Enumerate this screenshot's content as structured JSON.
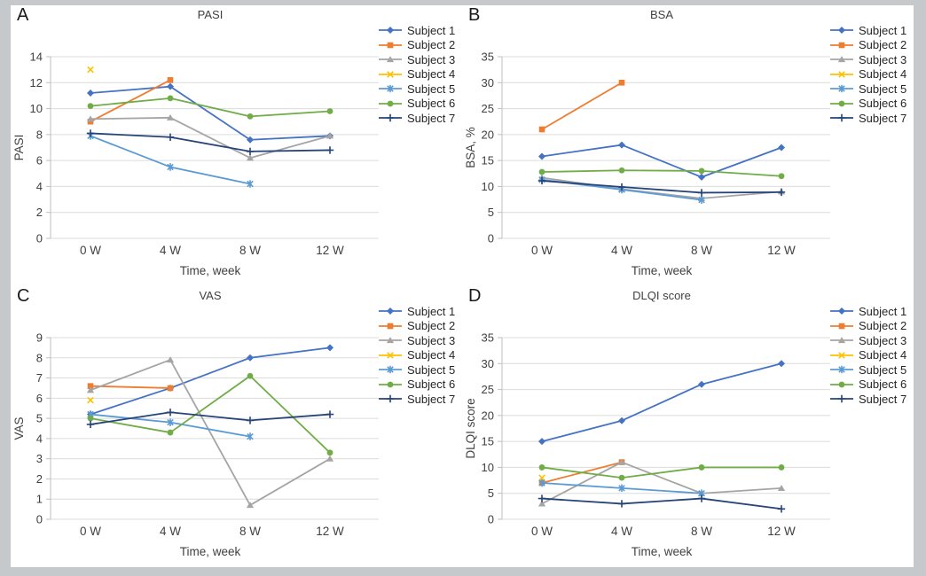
{
  "frame": {
    "border_color": "#c6c9cc",
    "canvas_color": "#ffffff"
  },
  "figure": {
    "panel_letters": [
      "A",
      "B",
      "C",
      "D"
    ],
    "xlabel": "Time, week",
    "categories": [
      "0 W",
      "4 W",
      "8 W",
      "12 W"
    ]
  },
  "subjects": [
    {
      "name": "Subject 1",
      "color": "#4472C4",
      "marker": "diamond"
    },
    {
      "name": "Subject 2",
      "color": "#ED7D31",
      "marker": "square"
    },
    {
      "name": "Subject 3",
      "color": "#A5A5A5",
      "marker": "triangle"
    },
    {
      "name": "Subject 4",
      "color": "#FFC000",
      "marker": "x"
    },
    {
      "name": "Subject 5",
      "color": "#5B9BD5",
      "marker": "asterisk"
    },
    {
      "name": "Subject 6",
      "color": "#70AD47",
      "marker": "circle"
    },
    {
      "name": "Subject 7",
      "color": "#264478",
      "marker": "plus"
    }
  ],
  "chart_data": [
    {
      "type": "line",
      "panel_label": "A",
      "title": "PASI",
      "ylabel": "PASI",
      "xlabel": "Time, week",
      "categories": [
        "0 W",
        "4 W",
        "8 W",
        "12 W"
      ],
      "ylim": [
        0,
        14
      ],
      "yticks": [
        0,
        2,
        4,
        6,
        8,
        10,
        12,
        14
      ],
      "grid": true,
      "legend_position": "right",
      "series": [
        {
          "name": "Subject 1",
          "values": [
            11.2,
            11.7,
            7.6,
            7.9
          ]
        },
        {
          "name": "Subject 2",
          "values": [
            9.0,
            12.2,
            null,
            null
          ]
        },
        {
          "name": "Subject 3",
          "values": [
            9.2,
            9.3,
            6.2,
            7.9
          ]
        },
        {
          "name": "Subject 4",
          "values": [
            13.0,
            null,
            null,
            null
          ]
        },
        {
          "name": "Subject 5",
          "values": [
            7.9,
            5.5,
            4.2,
            null
          ]
        },
        {
          "name": "Subject 6",
          "values": [
            10.2,
            10.8,
            9.4,
            9.8
          ]
        },
        {
          "name": "Subject 7",
          "values": [
            8.1,
            7.8,
            6.7,
            6.8
          ]
        }
      ]
    },
    {
      "type": "line",
      "panel_label": "B",
      "title": "BSA",
      "ylabel": "BSA, %",
      "xlabel": "Time, week",
      "categories": [
        "0 W",
        "4 W",
        "8 W",
        "12 W"
      ],
      "ylim": [
        0,
        35
      ],
      "yticks": [
        0,
        5,
        10,
        15,
        20,
        25,
        30,
        35
      ],
      "grid": true,
      "legend_position": "right",
      "series": [
        {
          "name": "Subject 1",
          "values": [
            15.8,
            18.0,
            11.8,
            17.5
          ]
        },
        {
          "name": "Subject 2",
          "values": [
            21.0,
            30.0,
            null,
            null
          ]
        },
        {
          "name": "Subject 3",
          "values": [
            11.7,
            9.5,
            7.7,
            9.0
          ]
        },
        {
          "name": "Subject 4",
          "values": [
            null,
            null,
            null,
            null
          ]
        },
        {
          "name": "Subject 5",
          "values": [
            11.3,
            9.4,
            7.4,
            null
          ]
        },
        {
          "name": "Subject 6",
          "values": [
            12.8,
            13.1,
            13.0,
            12.0
          ]
        },
        {
          "name": "Subject 7",
          "values": [
            11.1,
            9.9,
            8.8,
            8.9
          ]
        }
      ]
    },
    {
      "type": "line",
      "panel_label": "C",
      "title": "VAS",
      "ylabel": "VAS",
      "xlabel": "Time, week",
      "categories": [
        "0 W",
        "4 W",
        "8 W",
        "12 W"
      ],
      "ylim": [
        0,
        9
      ],
      "yticks": [
        0,
        1,
        2,
        3,
        4,
        5,
        6,
        7,
        8,
        9
      ],
      "grid": true,
      "legend_position": "right",
      "series": [
        {
          "name": "Subject 1",
          "values": [
            5.2,
            6.5,
            8.0,
            8.5
          ]
        },
        {
          "name": "Subject 2",
          "values": [
            6.6,
            6.5,
            null,
            null
          ]
        },
        {
          "name": "Subject 3",
          "values": [
            6.4,
            7.9,
            0.7,
            3.0
          ]
        },
        {
          "name": "Subject 4",
          "values": [
            5.9,
            null,
            null,
            null
          ]
        },
        {
          "name": "Subject 5",
          "values": [
            5.2,
            4.8,
            4.1,
            null
          ]
        },
        {
          "name": "Subject 6",
          "values": [
            5.0,
            4.3,
            7.1,
            3.3
          ]
        },
        {
          "name": "Subject 7",
          "values": [
            4.7,
            5.3,
            4.9,
            5.2
          ]
        }
      ]
    },
    {
      "type": "line",
      "panel_label": "D",
      "title": "DLQI score",
      "ylabel": "DLQI score",
      "xlabel": "Time, week",
      "categories": [
        "0 W",
        "4 W",
        "8 W",
        "12 W"
      ],
      "ylim": [
        0,
        35
      ],
      "yticks": [
        0,
        5,
        10,
        15,
        20,
        25,
        30,
        35
      ],
      "grid": true,
      "legend_position": "right",
      "series": [
        {
          "name": "Subject 1",
          "values": [
            15,
            19,
            26,
            30
          ]
        },
        {
          "name": "Subject 2",
          "values": [
            7,
            11,
            null,
            null
          ]
        },
        {
          "name": "Subject 3",
          "values": [
            3,
            11,
            5,
            6
          ]
        },
        {
          "name": "Subject 4",
          "values": [
            8,
            null,
            null,
            null
          ]
        },
        {
          "name": "Subject 5",
          "values": [
            7,
            6,
            5,
            null
          ]
        },
        {
          "name": "Subject 6",
          "values": [
            10,
            8,
            10,
            10
          ]
        },
        {
          "name": "Subject 7",
          "values": [
            4,
            3,
            4,
            2
          ]
        }
      ]
    }
  ]
}
